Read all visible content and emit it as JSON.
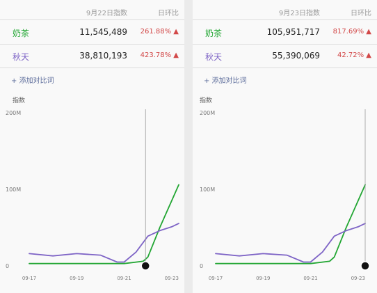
{
  "colors": {
    "milk_tea": "#22a633",
    "autumn": "#7e64c6",
    "up": "#d24848"
  },
  "panels": [
    {
      "header": {
        "date": "9月22日指数",
        "ratio": "日环比"
      },
      "rows": [
        {
          "term": "奶茶",
          "value": "11,545,489",
          "ratio": "261.88% ▲"
        },
        {
          "term": "秋天",
          "value": "38,810,193",
          "ratio": "423.78% ▲"
        }
      ],
      "add_compare": "+ 添加对比词"
    },
    {
      "header": {
        "date": "9月23日指数",
        "ratio": "日环比"
      },
      "rows": [
        {
          "term": "奶茶",
          "value": "105,951,717",
          "ratio": "817.69% ▲"
        },
        {
          "term": "秋天",
          "value": "55,390,069",
          "ratio": "42.72% ▲"
        }
      ],
      "add_compare": "+ 添加对比词"
    }
  ],
  "chart_data": [
    {
      "type": "line",
      "title": "",
      "ylabel": "指数",
      "ylim": [
        0,
        200000000
      ],
      "ytick_labels": [
        "0",
        "100M",
        "200M"
      ],
      "ytick_values": [
        0,
        100000000,
        200000000
      ],
      "xlim": [
        0,
        6.3
      ],
      "xtick_labels": [
        "09-17",
        "09-19",
        "09-21",
        "09-23"
      ],
      "xtick_values": [
        0,
        2,
        4,
        6
      ],
      "grid": false,
      "marker_x": 4.9,
      "series": [
        {
          "color": "#22a633",
          "x": [
            0,
            1,
            2,
            3,
            4,
            4.8,
            5,
            5.5,
            6,
            6.3
          ],
          "y": [
            3000000,
            3000000,
            3000000,
            3000000,
            3000000,
            6000000,
            11545489,
            50000000,
            85000000,
            105951717
          ]
        },
        {
          "color": "#7e64c6",
          "x": [
            0,
            1,
            2,
            3,
            3.7,
            4,
            4.5,
            5,
            5.5,
            6,
            6.3
          ],
          "y": [
            16000000,
            13000000,
            16000000,
            14000000,
            5000000,
            5000000,
            18000000,
            38810193,
            46000000,
            51000000,
            55390069
          ]
        }
      ]
    },
    {
      "type": "line",
      "title": "",
      "ylabel": "指数",
      "ylim": [
        0,
        200000000
      ],
      "ytick_labels": [
        "0",
        "100M",
        "200M"
      ],
      "ytick_values": [
        0,
        100000000,
        200000000
      ],
      "xlim": [
        0,
        6.3
      ],
      "xtick_labels": [
        "09-17",
        "09-19",
        "09-21",
        "09-23"
      ],
      "xtick_values": [
        0,
        2,
        4,
        6
      ],
      "grid": false,
      "marker_x": 6.3,
      "series": [
        {
          "color": "#22a633",
          "x": [
            0,
            1,
            2,
            3,
            4,
            4.8,
            5,
            5.5,
            6,
            6.3
          ],
          "y": [
            3000000,
            3000000,
            3000000,
            3000000,
            3000000,
            6000000,
            11545489,
            50000000,
            85000000,
            105951717
          ]
        },
        {
          "color": "#7e64c6",
          "x": [
            0,
            1,
            2,
            3,
            3.7,
            4,
            4.5,
            5,
            5.5,
            6,
            6.3
          ],
          "y": [
            16000000,
            13000000,
            16000000,
            14000000,
            5000000,
            5000000,
            18000000,
            38810193,
            46000000,
            51000000,
            55390069
          ]
        }
      ]
    }
  ]
}
